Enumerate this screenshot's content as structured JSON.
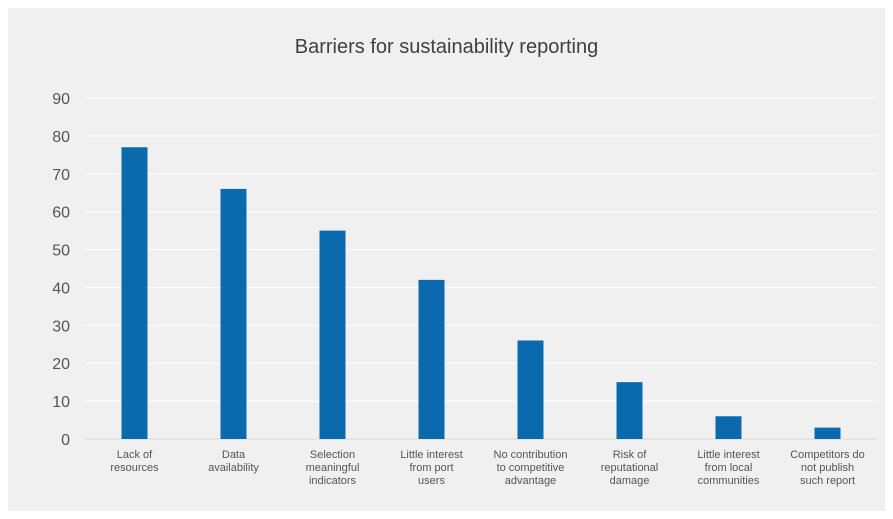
{
  "chart_data": {
    "type": "bar",
    "title": "Barriers for sustainability reporting",
    "categories": [
      [
        "Lack of",
        "resources"
      ],
      [
        "Data",
        "availability"
      ],
      [
        "Selection",
        "meaningful",
        "indicators"
      ],
      [
        "Little interest",
        "from port",
        "users"
      ],
      [
        "No contribution",
        "to competitive",
        "advantage"
      ],
      [
        "Risk of",
        "reputational",
        "damage"
      ],
      [
        "Little interest",
        "from local",
        "communities"
      ],
      [
        "Competitors do",
        "not publish",
        "such report"
      ]
    ],
    "values": [
      77,
      66,
      55,
      42,
      26,
      15,
      6,
      3
    ],
    "ylim": [
      0,
      90
    ],
    "yticks": [
      0,
      10,
      20,
      30,
      40,
      50,
      60,
      70,
      80,
      90
    ],
    "grid": true,
    "bar_color": "#0a6aad",
    "grid_color": "#ffffff"
  }
}
